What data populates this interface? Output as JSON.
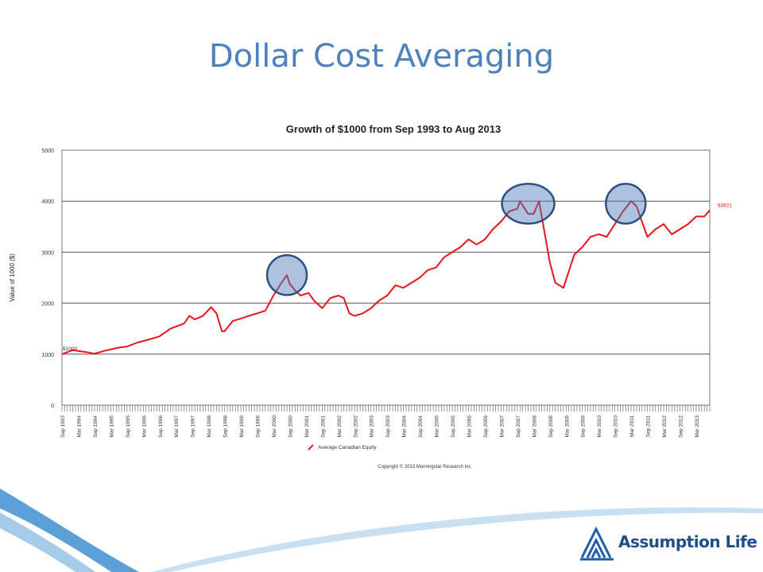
{
  "slide": {
    "title": "Dollar Cost Averaging"
  },
  "brand": {
    "name": "Assumption Life",
    "logo_color": "#1f5da8",
    "swoosh_color": "#3f8fd0"
  },
  "chart_data": {
    "type": "line",
    "title": "Growth of $1000 from Sep 1993 to Aug 2013",
    "xlabel": "",
    "ylabel": "Value of 1000 ($)",
    "ylim": [
      0,
      5000
    ],
    "yticks": [
      0,
      1000,
      2000,
      3000,
      4000,
      5000
    ],
    "grid": true,
    "legend_position": "bottom-left",
    "x_tick_labels": [
      "Sep 1993",
      "Mar 1994",
      "Sep 1994",
      "Mar 1995",
      "Sep 1995",
      "Mar 1996",
      "Sep 1996",
      "Mar 1997",
      "Sep 1997",
      "Mar 1998",
      "Sep 1998",
      "Mar 1999",
      "Sep 1999",
      "Mar 2000",
      "Sep 2000",
      "Mar 2001",
      "Sep 2001",
      "Mar 2002",
      "Sep 2002",
      "Mar 2003",
      "Sep 2003",
      "Mar 2004",
      "Sep 2004",
      "Mar 2005",
      "Sep 2005",
      "Mar 2006",
      "Sep 2006",
      "Mar 2007",
      "Sep 2007",
      "Mar 2008",
      "Sep 2008",
      "Mar 2009",
      "Sep 2009",
      "Mar 2010",
      "Sep 2010",
      "Mar 2011",
      "Sep 2011",
      "Mar 2012",
      "Sep 2012",
      "Mar 2013"
    ],
    "series": [
      {
        "name": "Average Canadian Equity",
        "color": "#e8141c",
        "x": [
          "1993-09",
          "1994-01",
          "1994-06",
          "1994-09",
          "1995-01",
          "1995-06",
          "1995-09",
          "1996-01",
          "1996-06",
          "1996-09",
          "1997-01",
          "1997-06",
          "1997-08",
          "1997-10",
          "1998-01",
          "1998-04",
          "1998-06",
          "1998-08",
          "1998-09",
          "1998-12",
          "1999-03",
          "1999-06",
          "1999-09",
          "1999-12",
          "2000-03",
          "2000-06",
          "2000-08",
          "2000-09",
          "2000-11",
          "2001-01",
          "2001-04",
          "2001-06",
          "2001-09",
          "2001-12",
          "2002-03",
          "2002-05",
          "2002-07",
          "2002-09",
          "2002-12",
          "2003-03",
          "2003-06",
          "2003-09",
          "2003-12",
          "2004-03",
          "2004-06",
          "2004-09",
          "2004-12",
          "2005-03",
          "2005-06",
          "2005-09",
          "2005-12",
          "2006-03",
          "2006-06",
          "2006-09",
          "2006-12",
          "2007-03",
          "2007-06",
          "2007-09",
          "2007-10",
          "2008-01",
          "2008-03",
          "2008-05",
          "2008-06",
          "2008-09",
          "2008-11",
          "2009-02",
          "2009-06",
          "2009-09",
          "2009-12",
          "2010-03",
          "2010-06",
          "2010-09",
          "2010-12",
          "2011-03",
          "2011-05",
          "2011-07",
          "2011-09",
          "2011-12",
          "2012-03",
          "2012-06",
          "2012-09",
          "2012-12",
          "2013-03",
          "2013-06",
          "2013-08"
        ],
        "values": [
          1000,
          1080,
          1040,
          1010,
          1070,
          1130,
          1150,
          1230,
          1300,
          1350,
          1500,
          1600,
          1750,
          1680,
          1750,
          1920,
          1800,
          1450,
          1450,
          1650,
          1700,
          1750,
          1800,
          1850,
          2150,
          2400,
          2550,
          2380,
          2250,
          2150,
          2200,
          2050,
          1900,
          2100,
          2150,
          2100,
          1800,
          1750,
          1800,
          1900,
          2050,
          2150,
          2350,
          2300,
          2400,
          2500,
          2650,
          2700,
          2900,
          3000,
          3100,
          3250,
          3150,
          3250,
          3450,
          3600,
          3800,
          3850,
          4000,
          3750,
          3750,
          4000,
          3700,
          2800,
          2400,
          2300,
          2950,
          3100,
          3300,
          3350,
          3300,
          3550,
          3800,
          4000,
          3900,
          3600,
          3300,
          3450,
          3550,
          3350,
          3450,
          3550,
          3700,
          3700,
          3821
        ]
      }
    ],
    "annotations": [
      {
        "label": "$1000",
        "x": "1993-09",
        "y": 1000
      },
      {
        "label": "$3821",
        "x": "2013-08",
        "y": 3821
      }
    ],
    "highlight_circles": [
      {
        "x": "2000-08",
        "y": 2550
      },
      {
        "x": "2008-01",
        "y": 3950
      },
      {
        "x": "2011-01",
        "y": 3950
      }
    ],
    "highlight_color": "#4a78b5",
    "copyright": "Copyright © 2013 Morningstar Research Inc"
  }
}
